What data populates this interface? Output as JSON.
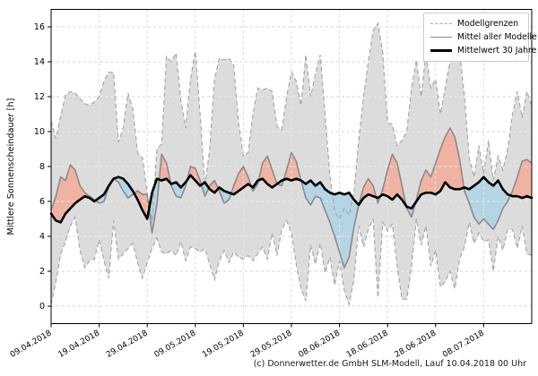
{
  "footer": {
    "text": "(c) Donnerwetter.de GmbH SLM-Modell, Lauf 10.04.2018 00 Uhr"
  },
  "chart_data": {
    "type": "line",
    "title": "",
    "xlabel": "",
    "ylabel": "Mittlere Sonnenscheindauer [h]",
    "ylim": [
      -1,
      17
    ],
    "yticks": [
      0,
      2,
      4,
      6,
      8,
      10,
      12,
      14,
      16
    ],
    "x_days_range": [
      0,
      100
    ],
    "x_start_date": "09.04.2018",
    "xtick_days": [
      0,
      10,
      20,
      30,
      40,
      50,
      60,
      70,
      80,
      90
    ],
    "xtick_labels": [
      "09.04.2018",
      "19.04.2018",
      "29.04.2018",
      "09.05.2018",
      "19.05.2018",
      "29.05.2018",
      "08.06.2018",
      "18.06.2018",
      "28.06.2018",
      "08.07.2018"
    ],
    "grid": true,
    "legend": {
      "position": "upper right",
      "entries": [
        {
          "label": "Modellgrenzen",
          "style": "dashed-gray"
        },
        {
          "label": "Mittel aller Modelle",
          "style": "solid-gray"
        },
        {
          "label": "Mittelwert 30 Jahre",
          "style": "thick-black"
        }
      ]
    },
    "series": [
      {
        "name": "Modellgrenzen (oben)",
        "role": "upper_bound",
        "values": [
          10.6,
          9.6,
          10.9,
          12.1,
          12.3,
          12.2,
          11.9,
          11.6,
          11.5,
          11.7,
          12.0,
          12.9,
          13.4,
          13.4,
          9.4,
          10.2,
          12.2,
          11.3,
          8.8,
          8.5,
          6.5,
          4.9,
          9.0,
          9.3,
          14.3,
          14.0,
          14.5,
          11.8,
          10.2,
          13.0,
          14.6,
          11.0,
          6.9,
          9.0,
          13.0,
          14.2,
          14.1,
          14.2,
          13.8,
          10.5,
          8.6,
          8.8,
          11.0,
          12.5,
          12.4,
          12.5,
          12.3,
          10.3,
          10.1,
          12.0,
          13.4,
          12.9,
          11.5,
          14.4,
          12.0,
          13.3,
          14.4,
          11.0,
          7.5,
          5.4,
          5.0,
          5.6,
          5.2,
          6.5,
          9.5,
          12.0,
          14.0,
          15.8,
          16.2,
          14.5,
          10.5,
          10.4,
          9.2,
          9.5,
          10.0,
          12.5,
          14.1,
          12.0,
          14.5,
          12.5,
          13.0,
          11.0,
          12.5,
          14.0,
          15.0,
          14.6,
          12.0,
          8.5,
          7.4,
          9.2,
          7.6,
          9.5,
          7.2,
          8.6,
          7.8,
          9.0,
          11.0,
          12.3,
          10.8,
          12.3,
          11.5
        ]
      },
      {
        "name": "Modellgrenzen (unten)",
        "role": "lower_bound",
        "values": [
          0.1,
          1.4,
          3.0,
          3.7,
          4.6,
          5.1,
          3.2,
          2.2,
          2.6,
          2.7,
          3.8,
          2.6,
          1.6,
          4.9,
          2.7,
          3.0,
          3.3,
          3.6,
          2.5,
          1.6,
          2.5,
          3.3,
          3.9,
          3.1,
          3.0,
          3.2,
          2.9,
          3.7,
          2.6,
          3.4,
          3.3,
          3.1,
          3.3,
          2.4,
          1.5,
          2.6,
          3.2,
          2.5,
          3.1,
          2.8,
          2.7,
          2.9,
          2.6,
          3.0,
          3.4,
          2.7,
          4.2,
          2.9,
          4.4,
          4.9,
          4.2,
          2.4,
          1.0,
          0.3,
          3.5,
          2.4,
          3.6,
          1.9,
          2.8,
          1.2,
          2.6,
          0.9,
          0.1,
          1.5,
          4.6,
          3.4,
          4.4,
          5.0,
          0.5,
          4.8,
          4.3,
          4.7,
          2.3,
          0.4,
          0.4,
          2.3,
          5.0,
          3.5,
          4.6,
          2.3,
          3.2,
          1.1,
          1.4,
          2.0,
          1.0,
          2.7,
          3.4,
          4.8,
          3.6,
          4.2,
          3.7,
          3.8,
          2.0,
          4.0,
          3.2,
          4.4,
          4.4,
          3.3,
          4.6,
          3.0,
          2.9
        ]
      },
      {
        "name": "Mittel aller Modelle",
        "role": "model_mean",
        "values": [
          5.5,
          6.3,
          7.4,
          7.2,
          8.1,
          7.8,
          6.9,
          6.5,
          6.3,
          6.1,
          5.9,
          6.0,
          6.8,
          7.3,
          7.1,
          6.6,
          6.2,
          6.4,
          6.6,
          6.4,
          6.4,
          4.2,
          5.8,
          8.7,
          8.2,
          6.9,
          6.3,
          6.2,
          6.9,
          8.0,
          7.9,
          7.2,
          6.3,
          6.9,
          7.2,
          6.6,
          5.9,
          6.1,
          6.9,
          7.6,
          8.0,
          7.4,
          6.6,
          7.0,
          8.2,
          8.6,
          7.8,
          7.0,
          6.9,
          7.8,
          8.8,
          8.3,
          7.2,
          6.2,
          5.8,
          6.3,
          6.2,
          5.5,
          4.8,
          4.0,
          3.1,
          2.2,
          2.8,
          4.5,
          5.8,
          6.8,
          7.3,
          6.9,
          5.9,
          6.7,
          7.8,
          8.7,
          8.2,
          6.9,
          5.6,
          5.1,
          6.1,
          7.2,
          7.8,
          7.4,
          8.2,
          9.0,
          9.7,
          10.2,
          9.7,
          8.4,
          6.6,
          5.9,
          5.1,
          4.7,
          5.0,
          4.7,
          4.4,
          4.9,
          5.6,
          6.0,
          6.6,
          7.4,
          8.3,
          8.4,
          8.2
        ]
      },
      {
        "name": "Mittelwert 30 Jahre",
        "role": "climate_mean",
        "values": [
          5.3,
          4.9,
          4.8,
          5.3,
          5.6,
          5.9,
          6.1,
          6.3,
          6.2,
          6.0,
          6.2,
          6.4,
          6.9,
          7.3,
          7.4,
          7.3,
          7.0,
          6.6,
          6.1,
          5.5,
          5.0,
          6.5,
          7.3,
          7.2,
          7.3,
          7.0,
          7.1,
          6.8,
          7.1,
          7.5,
          7.2,
          6.9,
          7.1,
          6.7,
          6.5,
          6.8,
          6.6,
          6.5,
          6.4,
          6.6,
          6.8,
          7.0,
          6.8,
          7.2,
          7.3,
          7.0,
          6.8,
          7.0,
          7.2,
          7.3,
          7.2,
          7.3,
          7.2,
          7.0,
          7.2,
          6.9,
          7.1,
          6.7,
          6.5,
          6.4,
          6.5,
          6.4,
          6.5,
          6.1,
          5.8,
          6.2,
          6.4,
          6.3,
          6.2,
          6.4,
          6.3,
          6.1,
          6.4,
          6.1,
          5.7,
          5.6,
          6.0,
          6.4,
          6.5,
          6.5,
          6.4,
          6.6,
          7.1,
          6.8,
          6.7,
          6.7,
          6.8,
          6.7,
          6.9,
          7.1,
          7.4,
          7.1,
          6.9,
          7.2,
          6.7,
          6.4,
          6.3,
          6.3,
          6.2,
          6.3,
          6.2
        ]
      }
    ],
    "colors": {
      "band": "#dcdcdc",
      "bound_line": "#a3a3a3",
      "model_mean_line": "#8a8a8a",
      "climate_line": "#000000",
      "fill_above": "#f0b3a3",
      "fill_below": "#b5d5e4",
      "grid": "#d6d6d6",
      "grid_on_band": "#ebebeb",
      "axis": "#000000"
    }
  }
}
